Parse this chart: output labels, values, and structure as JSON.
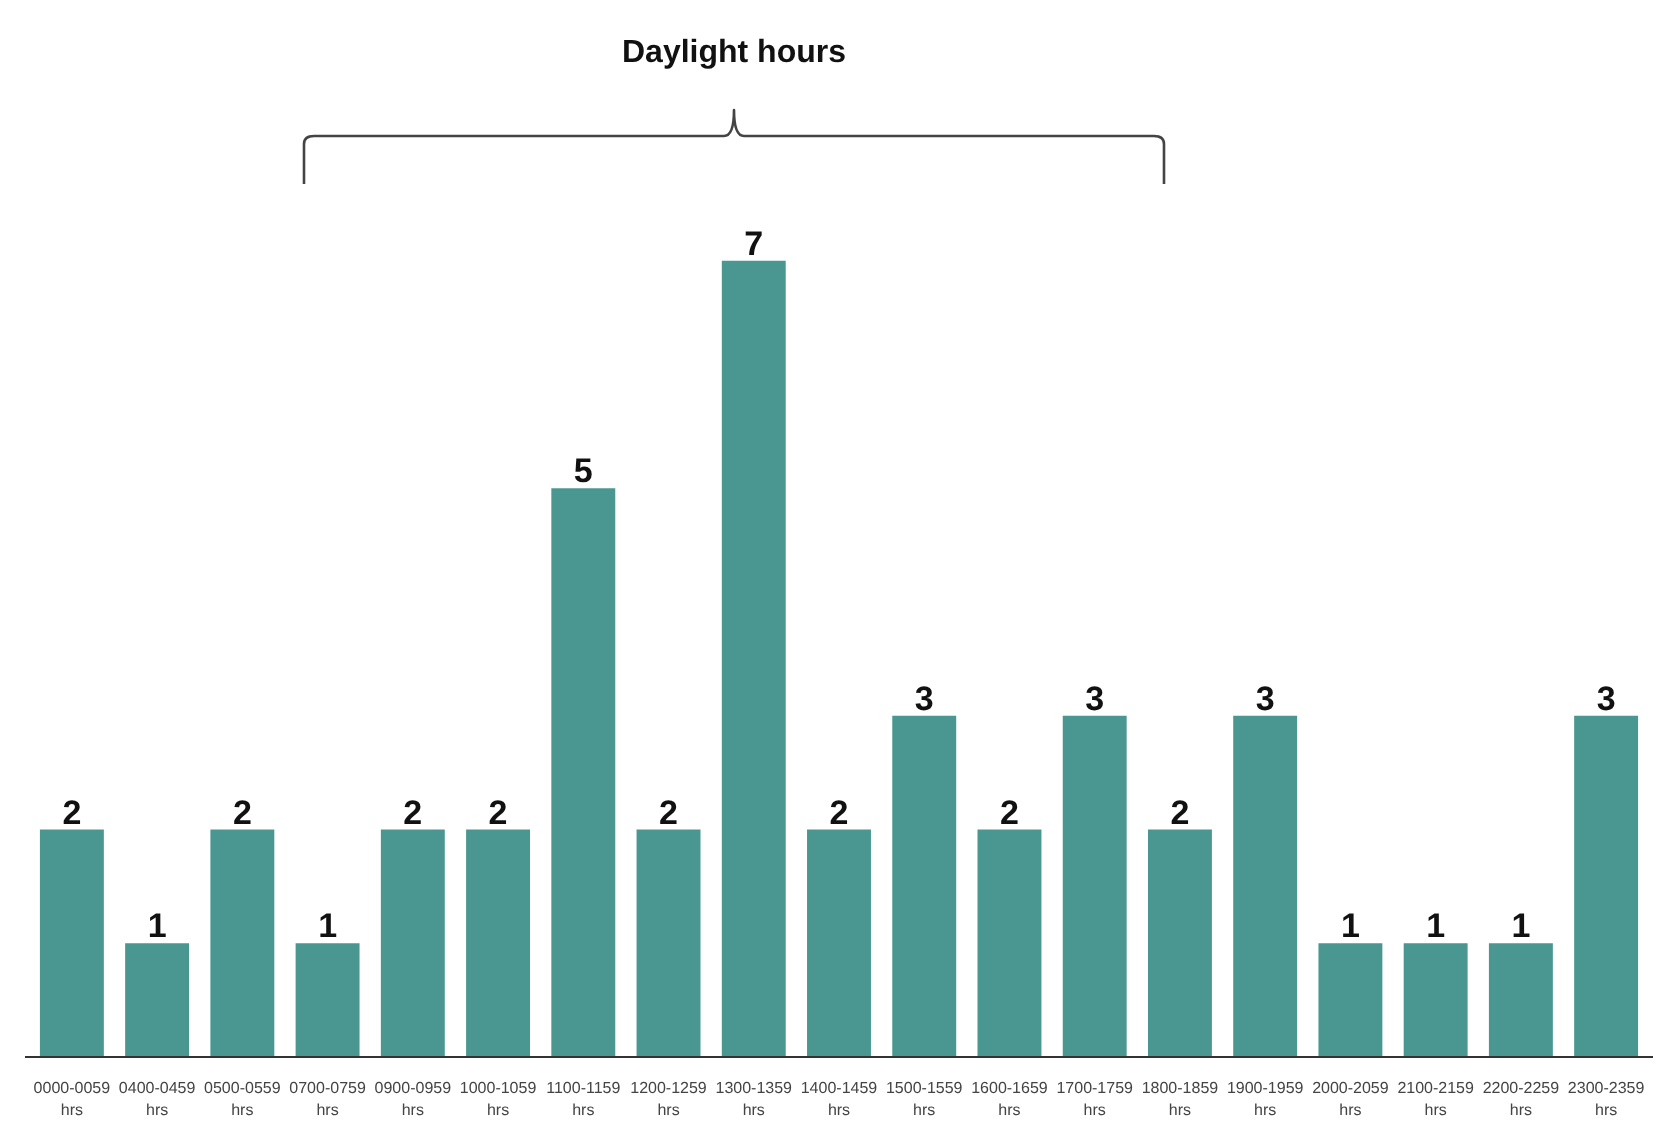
{
  "chart_data": {
    "type": "bar",
    "categories": [
      "0000-0059 hrs",
      "0400-0459 hrs",
      "0500-0559 hrs",
      "0700-0759 hrs",
      "0900-0959 hrs",
      "1000-1059 hrs",
      "1100-1159 hrs",
      "1200-1259 hrs",
      "1300-1359 hrs",
      "1400-1459 hrs",
      "1500-1559 hrs",
      "1600-1659 hrs",
      "1700-1759 hrs",
      "1800-1859 hrs",
      "1900-1959 hrs",
      "2000-2059 hrs",
      "2100-2159 hrs",
      "2200-2259 hrs",
      "2300-2359 hrs"
    ],
    "values": [
      2,
      1,
      2,
      1,
      2,
      2,
      5,
      2,
      7,
      2,
      3,
      2,
      3,
      2,
      3,
      1,
      1,
      1,
      3
    ],
    "color": "#4a9792",
    "data_labels": true,
    "annotations": [
      "Daylight hours"
    ]
  }
}
